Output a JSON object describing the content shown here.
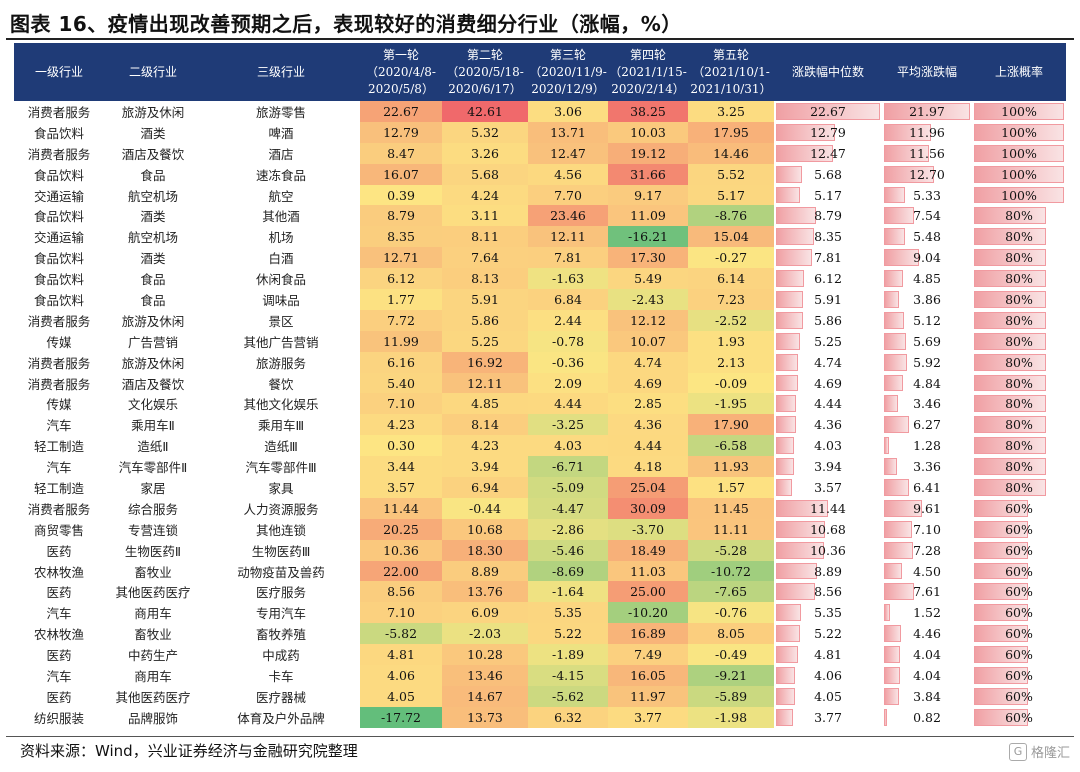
{
  "title": "图表 16、疫情出现改善预期之后，表现较好的消费细分行业（涨幅，%）",
  "headers": {
    "l1": "一级行业",
    "l2": "二级行业",
    "l3": "三级行业",
    "rounds": [
      [
        "第一轮",
        "（2020/4/8-",
        "2020/5/8）"
      ],
      [
        "第二轮",
        "（2020/5/18-",
        "2020/6/17）"
      ],
      [
        "第三轮",
        "（2020/11/9-",
        "2020/12/9）"
      ],
      [
        "第四轮",
        "（2021/1/15-",
        "2020/2/14）"
      ],
      [
        "第五轮",
        "（2021/10/1-",
        "2021/10/31）"
      ]
    ],
    "median": "涨跌幅中位数",
    "avg": "平均涨跌幅",
    "prob": "上涨概率"
  },
  "rows": [
    {
      "l1": "消费者服务",
      "l2": "旅游及休闲",
      "l3": "旅游零售",
      "r": [
        "22.67",
        "42.61",
        "3.06",
        "38.25",
        "3.25"
      ],
      "median": "22.67",
      "avg": "21.97",
      "prob": "100%"
    },
    {
      "l1": "食品饮料",
      "l2": "酒类",
      "l3": "啤酒",
      "r": [
        "12.79",
        "5.32",
        "13.71",
        "10.03",
        "17.95"
      ],
      "median": "12.79",
      "avg": "11.96",
      "prob": "100%"
    },
    {
      "l1": "消费者服务",
      "l2": "酒店及餐饮",
      "l3": "酒店",
      "r": [
        "8.47",
        "3.26",
        "12.47",
        "19.12",
        "14.46"
      ],
      "median": "12.47",
      "avg": "11.56",
      "prob": "100%"
    },
    {
      "l1": "食品饮料",
      "l2": "食品",
      "l3": "速冻食品",
      "r": [
        "16.07",
        "5.68",
        "4.56",
        "31.66",
        "5.52"
      ],
      "median": "5.68",
      "avg": "12.70",
      "prob": "100%"
    },
    {
      "l1": "交通运输",
      "l2": "航空机场",
      "l3": "航空",
      "r": [
        "0.39",
        "4.24",
        "7.70",
        "9.17",
        "5.17"
      ],
      "median": "5.17",
      "avg": "5.33",
      "prob": "100%"
    },
    {
      "l1": "食品饮料",
      "l2": "酒类",
      "l3": "其他酒",
      "r": [
        "8.79",
        "3.11",
        "23.46",
        "11.09",
        "-8.76"
      ],
      "median": "8.79",
      "avg": "7.54",
      "prob": "80%"
    },
    {
      "l1": "交通运输",
      "l2": "航空机场",
      "l3": "机场",
      "r": [
        "8.35",
        "8.11",
        "12.11",
        "-16.21",
        "15.04"
      ],
      "median": "8.35",
      "avg": "5.48",
      "prob": "80%"
    },
    {
      "l1": "食品饮料",
      "l2": "酒类",
      "l3": "白酒",
      "r": [
        "12.71",
        "7.64",
        "7.81",
        "17.30",
        "-0.27"
      ],
      "median": "7.81",
      "avg": "9.04",
      "prob": "80%"
    },
    {
      "l1": "食品饮料",
      "l2": "食品",
      "l3": "休闲食品",
      "r": [
        "6.12",
        "8.13",
        "-1.63",
        "5.49",
        "6.14"
      ],
      "median": "6.12",
      "avg": "4.85",
      "prob": "80%"
    },
    {
      "l1": "食品饮料",
      "l2": "食品",
      "l3": "调味品",
      "r": [
        "1.77",
        "5.91",
        "6.84",
        "-2.43",
        "7.23"
      ],
      "median": "5.91",
      "avg": "3.86",
      "prob": "80%"
    },
    {
      "l1": "消费者服务",
      "l2": "旅游及休闲",
      "l3": "景区",
      "r": [
        "7.72",
        "5.86",
        "2.44",
        "12.12",
        "-2.52"
      ],
      "median": "5.86",
      "avg": "5.12",
      "prob": "80%"
    },
    {
      "l1": "传媒",
      "l2": "广告营销",
      "l3": "其他广告营销",
      "r": [
        "11.99",
        "5.25",
        "-0.78",
        "10.07",
        "1.93"
      ],
      "median": "5.25",
      "avg": "5.69",
      "prob": "80%"
    },
    {
      "l1": "消费者服务",
      "l2": "旅游及休闲",
      "l3": "旅游服务",
      "r": [
        "6.16",
        "16.92",
        "-0.36",
        "4.74",
        "2.13"
      ],
      "median": "4.74",
      "avg": "5.92",
      "prob": "80%"
    },
    {
      "l1": "消费者服务",
      "l2": "酒店及餐饮",
      "l3": "餐饮",
      "r": [
        "5.40",
        "12.11",
        "2.09",
        "4.69",
        "-0.09"
      ],
      "median": "4.69",
      "avg": "4.84",
      "prob": "80%"
    },
    {
      "l1": "传媒",
      "l2": "文化娱乐",
      "l3": "其他文化娱乐",
      "r": [
        "7.10",
        "4.85",
        "4.44",
        "2.85",
        "-1.95"
      ],
      "median": "4.44",
      "avg": "3.46",
      "prob": "80%"
    },
    {
      "l1": "汽车",
      "l2": "乘用车Ⅱ",
      "l3": "乘用车Ⅲ",
      "r": [
        "4.23",
        "8.14",
        "-3.25",
        "4.36",
        "17.90"
      ],
      "median": "4.36",
      "avg": "6.27",
      "prob": "80%"
    },
    {
      "l1": "轻工制造",
      "l2": "造纸Ⅱ",
      "l3": "造纸Ⅲ",
      "r": [
        "0.30",
        "4.23",
        "4.03",
        "4.44",
        "-6.58"
      ],
      "median": "4.03",
      "avg": "1.28",
      "prob": "80%"
    },
    {
      "l1": "汽车",
      "l2": "汽车零部件Ⅱ",
      "l3": "汽车零部件Ⅲ",
      "r": [
        "3.44",
        "3.94",
        "-6.71",
        "4.18",
        "11.93"
      ],
      "median": "3.94",
      "avg": "3.36",
      "prob": "80%"
    },
    {
      "l1": "轻工制造",
      "l2": "家居",
      "l3": "家具",
      "r": [
        "3.57",
        "6.94",
        "-5.09",
        "25.04",
        "1.57"
      ],
      "median": "3.57",
      "avg": "6.41",
      "prob": "80%"
    },
    {
      "l1": "消费者服务",
      "l2": "综合服务",
      "l3": "人力资源服务",
      "r": [
        "11.44",
        "-0.44",
        "-4.47",
        "30.09",
        "11.45"
      ],
      "median": "11.44",
      "avg": "9.61",
      "prob": "60%"
    },
    {
      "l1": "商贸零售",
      "l2": "专营连锁",
      "l3": "其他连锁",
      "r": [
        "20.25",
        "10.68",
        "-2.86",
        "-3.70",
        "11.11"
      ],
      "median": "10.68",
      "avg": "7.10",
      "prob": "60%"
    },
    {
      "l1": "医药",
      "l2": "生物医药Ⅱ",
      "l3": "生物医药Ⅲ",
      "r": [
        "10.36",
        "18.30",
        "-5.46",
        "18.49",
        "-5.28"
      ],
      "median": "10.36",
      "avg": "7.28",
      "prob": "60%"
    },
    {
      "l1": "农林牧渔",
      "l2": "畜牧业",
      "l3": "动物疫苗及兽药",
      "r": [
        "22.00",
        "8.89",
        "-8.69",
        "11.03",
        "-10.72"
      ],
      "median": "8.89",
      "avg": "4.50",
      "prob": "60%"
    },
    {
      "l1": "医药",
      "l2": "其他医药医疗",
      "l3": "医疗服务",
      "r": [
        "8.56",
        "13.76",
        "-1.64",
        "25.00",
        "-7.65"
      ],
      "median": "8.56",
      "avg": "7.61",
      "prob": "60%"
    },
    {
      "l1": "汽车",
      "l2": "商用车",
      "l3": "专用汽车",
      "r": [
        "7.10",
        "6.09",
        "5.35",
        "-10.20",
        "-0.76"
      ],
      "median": "5.35",
      "avg": "1.52",
      "prob": "60%"
    },
    {
      "l1": "农林牧渔",
      "l2": "畜牧业",
      "l3": "畜牧养殖",
      "r": [
        "-5.82",
        "-2.03",
        "5.22",
        "16.89",
        "8.05"
      ],
      "median": "5.22",
      "avg": "4.46",
      "prob": "60%"
    },
    {
      "l1": "医药",
      "l2": "中药生产",
      "l3": "中成药",
      "r": [
        "4.81",
        "10.28",
        "-1.89",
        "7.49",
        "-0.49"
      ],
      "median": "4.81",
      "avg": "4.04",
      "prob": "60%"
    },
    {
      "l1": "汽车",
      "l2": "商用车",
      "l3": "卡车",
      "r": [
        "4.06",
        "13.46",
        "-4.15",
        "16.05",
        "-9.21"
      ],
      "median": "4.06",
      "avg": "4.04",
      "prob": "60%"
    },
    {
      "l1": "医药",
      "l2": "其他医药医疗",
      "l3": "医疗器械",
      "r": [
        "4.05",
        "14.67",
        "-5.62",
        "11.97",
        "-5.89"
      ],
      "median": "4.05",
      "avg": "3.84",
      "prob": "60%"
    },
    {
      "l1": "纺织服装",
      "l2": "品牌服饰",
      "l3": "体育及户外品牌",
      "r": [
        "-17.72",
        "13.73",
        "6.32",
        "3.77",
        "-1.98"
      ],
      "median": "3.77",
      "avg": "0.82",
      "prob": "60%"
    }
  ],
  "source": "资料来源：Wind，兴业证券经济与金融研究院整理",
  "watermark": "格隆汇",
  "colors": {
    "header_bg": "#1f3b77",
    "heat_high": "#f0696b",
    "heat_mid": "#fde683",
    "heat_low": "#63be7b",
    "bar": "#f0a0a4"
  }
}
